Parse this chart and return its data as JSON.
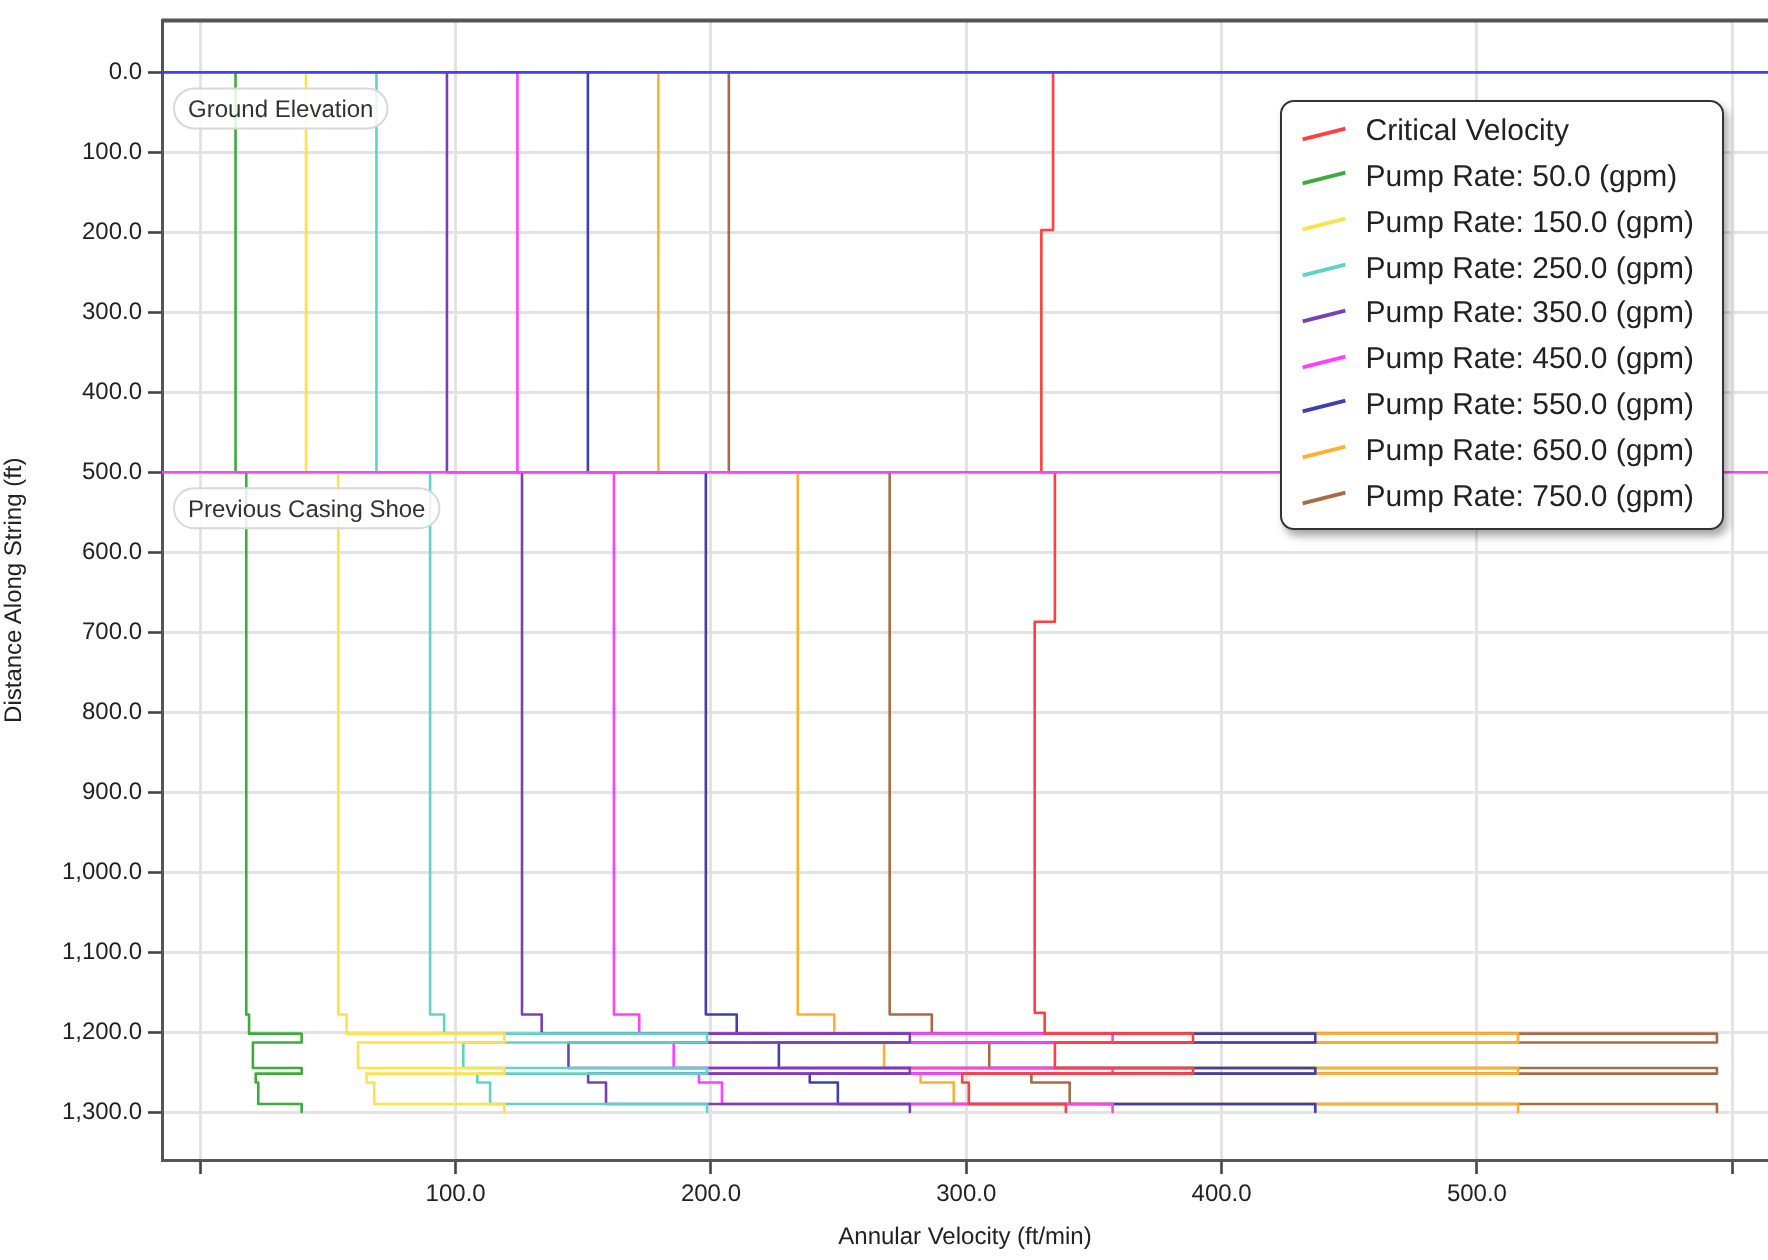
{
  "chart_data": {
    "type": "line",
    "xlabel": "Annular Velocity (ft/min)",
    "ylabel": "Distance Along String (ft)",
    "xlim": [
      -15,
      614
    ],
    "xticks": [
      {
        "value": 0,
        "label": null
      },
      {
        "value": 100,
        "label": "100.0"
      },
      {
        "value": 200,
        "label": "200.0"
      },
      {
        "value": 300,
        "label": "300.0"
      },
      {
        "value": 400,
        "label": "400.0"
      },
      {
        "value": 500,
        "label": "500.0"
      },
      {
        "value": 600,
        "label": null
      }
    ],
    "ylim": [
      1360,
      -65
    ],
    "yticks": [
      {
        "value": 0,
        "label": "0.0"
      },
      {
        "value": 100,
        "label": "100.0"
      },
      {
        "value": 200,
        "label": "200.0"
      },
      {
        "value": 300,
        "label": "300.0"
      },
      {
        "value": 400,
        "label": "400.0"
      },
      {
        "value": 500,
        "label": "500.0"
      },
      {
        "value": 600,
        "label": "600.0"
      },
      {
        "value": 700,
        "label": "700.0"
      },
      {
        "value": 800,
        "label": "800.0"
      },
      {
        "value": 900,
        "label": "900.0"
      },
      {
        "value": 1000,
        "label": "1,000.0"
      },
      {
        "value": 1100,
        "label": "1,100.0"
      },
      {
        "value": 1200,
        "label": "1,200.0"
      },
      {
        "value": 1300,
        "label": "1,300.0"
      }
    ],
    "grid": true,
    "legend": "top right",
    "marker": "none",
    "line_style": "solid",
    "ref_lines": [
      {
        "axis": "y",
        "value": 0,
        "label": "Ground Elevation",
        "color": "#4040ff"
      },
      {
        "axis": "y",
        "value": 500,
        "label": "Previous Casing Shoe",
        "color": "#ff40ff"
      }
    ],
    "series": [
      {
        "name": "Critical Velocity",
        "color": "#ff4040",
        "x": [
          334,
          334,
          329.4,
          329.4,
          334.7,
          334.7,
          326.8,
          326.8,
          330.7,
          330.7,
          388.8,
          388.8,
          334.7,
          334.7,
          388.8,
          388.8,
          298.4,
          298.4,
          301,
          301,
          339,
          339
        ],
        "values": [
          0,
          197,
          197,
          500,
          500,
          687,
          687,
          1176,
          1176,
          1202,
          1202,
          1213,
          1213,
          1245,
          1245,
          1252,
          1252,
          1263,
          1263,
          1290,
          1290,
          1300
        ]
      },
      {
        "name": "Pump Rate: 50.0 (gpm)",
        "color": "#3cac3c",
        "x": [
          13.8,
          13.8,
          18,
          18,
          19.1,
          19.1,
          39.7,
          39.7,
          20.6,
          20.6,
          39.7,
          39.7,
          21.7,
          21.7,
          22.7,
          22.7,
          39.7,
          39.7
        ],
        "values": [
          0,
          500,
          500,
          1178,
          1178,
          1202,
          1202,
          1213,
          1213,
          1245,
          1245,
          1252,
          1252,
          1263,
          1263,
          1290,
          1290,
          1300
        ]
      },
      {
        "name": "Pump Rate: 150.0 (gpm)",
        "color": "#ffe24a",
        "x": [
          41.4,
          41.4,
          54,
          54,
          57.3,
          57.3,
          119.1,
          119.1,
          61.8,
          61.8,
          119.1,
          119.1,
          65.1,
          65.1,
          68.1,
          68.1,
          119.1,
          119.1
        ],
        "values": [
          0,
          500,
          500,
          1178,
          1178,
          1202,
          1202,
          1213,
          1213,
          1245,
          1245,
          1252,
          1252,
          1263,
          1263,
          1290,
          1290,
          1300
        ]
      },
      {
        "name": "Pump Rate: 250.0 (gpm)",
        "color": "#5fd3c8",
        "x": [
          69,
          69,
          90,
          90,
          95.5,
          95.5,
          198.5,
          198.5,
          103,
          103,
          198.5,
          198.5,
          108.5,
          108.5,
          113.5,
          113.5,
          198.5,
          198.5
        ],
        "values": [
          0,
          500,
          500,
          1178,
          1178,
          1202,
          1202,
          1213,
          1213,
          1245,
          1245,
          1252,
          1252,
          1263,
          1263,
          1290,
          1290,
          1300
        ]
      },
      {
        "name": "Pump Rate: 350.0 (gpm)",
        "color": "#7b3fb5",
        "x": [
          96.6,
          96.6,
          126,
          126,
          133.7,
          133.7,
          277.9,
          277.9,
          144.2,
          144.2,
          277.9,
          277.9,
          151.9,
          151.9,
          158.9,
          158.9,
          277.9,
          277.9
        ],
        "values": [
          0,
          500,
          500,
          1178,
          1178,
          1202,
          1202,
          1213,
          1213,
          1245,
          1245,
          1252,
          1252,
          1263,
          1263,
          1290,
          1290,
          1300
        ]
      },
      {
        "name": "Pump Rate: 450.0 (gpm)",
        "color": "#ff40ff",
        "x": [
          124.2,
          124.2,
          162,
          162,
          171.9,
          171.9,
          357.3,
          357.3,
          185.4,
          185.4,
          357.3,
          357.3,
          195.3,
          195.3,
          204.3,
          204.3,
          357.3,
          357.3
        ],
        "values": [
          0,
          500,
          500,
          1178,
          1178,
          1202,
          1202,
          1213,
          1213,
          1245,
          1245,
          1252,
          1252,
          1263,
          1263,
          1290,
          1290,
          1300
        ]
      },
      {
        "name": "Pump Rate: 550.0 (gpm)",
        "color": "#3f3fb0",
        "x": [
          151.8,
          151.8,
          198,
          198,
          210.1,
          210.1,
          436.7,
          436.7,
          226.6,
          226.6,
          436.7,
          436.7,
          238.7,
          238.7,
          249.7,
          249.7,
          436.7,
          436.7
        ],
        "values": [
          0,
          500,
          500,
          1178,
          1178,
          1202,
          1202,
          1213,
          1213,
          1245,
          1245,
          1252,
          1252,
          1263,
          1263,
          1290,
          1290,
          1300
        ]
      },
      {
        "name": "Pump Rate: 650.0 (gpm)",
        "color": "#ffb030",
        "x": [
          179.4,
          179.4,
          234,
          234,
          248.3,
          248.3,
          516.1,
          516.1,
          267.8,
          267.8,
          516.1,
          516.1,
          282.1,
          282.1,
          295.1,
          295.1,
          516.1,
          516.1
        ],
        "values": [
          0,
          500,
          500,
          1178,
          1178,
          1202,
          1202,
          1213,
          1213,
          1245,
          1245,
          1252,
          1252,
          1263,
          1263,
          1290,
          1290,
          1300
        ]
      },
      {
        "name": "Pump Rate: 750.0 (gpm)",
        "color": "#a86b45",
        "x": [
          207,
          207,
          270,
          270,
          286.5,
          286.5,
          594,
          594,
          309,
          309,
          594,
          594,
          325.5,
          325.5,
          340.5,
          340.5,
          594,
          594
        ],
        "values": [
          0,
          500,
          500,
          1178,
          1178,
          1202,
          1202,
          1213,
          1213,
          1245,
          1245,
          1252,
          1252,
          1263,
          1263,
          1290,
          1290,
          1300
        ]
      }
    ]
  }
}
